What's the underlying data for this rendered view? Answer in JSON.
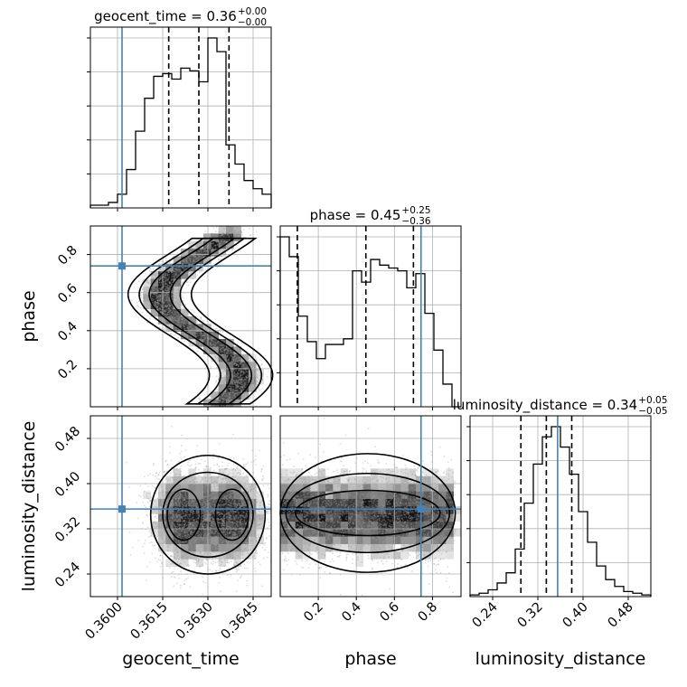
{
  "chart_data": {
    "type": "corner",
    "parameters": [
      {
        "name": "geocent_time",
        "title": "geocent_time = 0.36",
        "sup": "+0.00",
        "sub": "−0.00",
        "range": [
          0.3591,
          0.3651
        ],
        "ticks": [
          0.36,
          0.3615,
          0.363,
          0.3645
        ],
        "tick_labels": [
          "0.3600",
          "0.3615",
          "0.3630",
          "0.3645"
        ],
        "quantiles": [
          0.3617,
          0.3627,
          0.3637
        ],
        "injection": 0.36015
      },
      {
        "name": "phase",
        "title": "phase = 0.45",
        "sup": "+0.25",
        "sub": "−0.36",
        "range": [
          0.0,
          0.95
        ],
        "ticks": [
          0.2,
          0.4,
          0.6,
          0.8
        ],
        "tick_labels": [
          "0.2",
          "0.4",
          "0.6",
          "0.8"
        ],
        "quantiles": [
          0.09,
          0.45,
          0.7
        ],
        "injection": 0.74
      },
      {
        "name": "luminosity_distance",
        "title": "luminosity_distance = 0.34",
        "sup": "+0.05",
        "sub": "−0.05",
        "range": [
          0.2,
          0.52
        ],
        "ticks": [
          0.24,
          0.32,
          0.4,
          0.48
        ],
        "tick_labels": [
          "0.24",
          "0.32",
          "0.40",
          "0.48"
        ],
        "quantiles": [
          0.29,
          0.335,
          0.38
        ],
        "injection": 0.355
      }
    ],
    "histograms": {
      "geocent_time": [
        1,
        1,
        2,
        5,
        14,
        28,
        40,
        48,
        49,
        47,
        51,
        50,
        46,
        62,
        57,
        23,
        16,
        10,
        7,
        5
      ],
      "phase": [
        60,
        53,
        32,
        23,
        17,
        22,
        22,
        24,
        48,
        44,
        52,
        50,
        49,
        48,
        42,
        47,
        33,
        20,
        8,
        0
      ],
      "luminosity_distance": [
        1,
        2,
        4,
        8,
        14,
        28,
        55,
        78,
        94,
        100,
        88,
        72,
        50,
        32,
        18,
        10,
        6,
        3,
        2,
        1
      ]
    },
    "contour_color": "#000000",
    "injection_color": "#4682b4",
    "grid": true
  }
}
